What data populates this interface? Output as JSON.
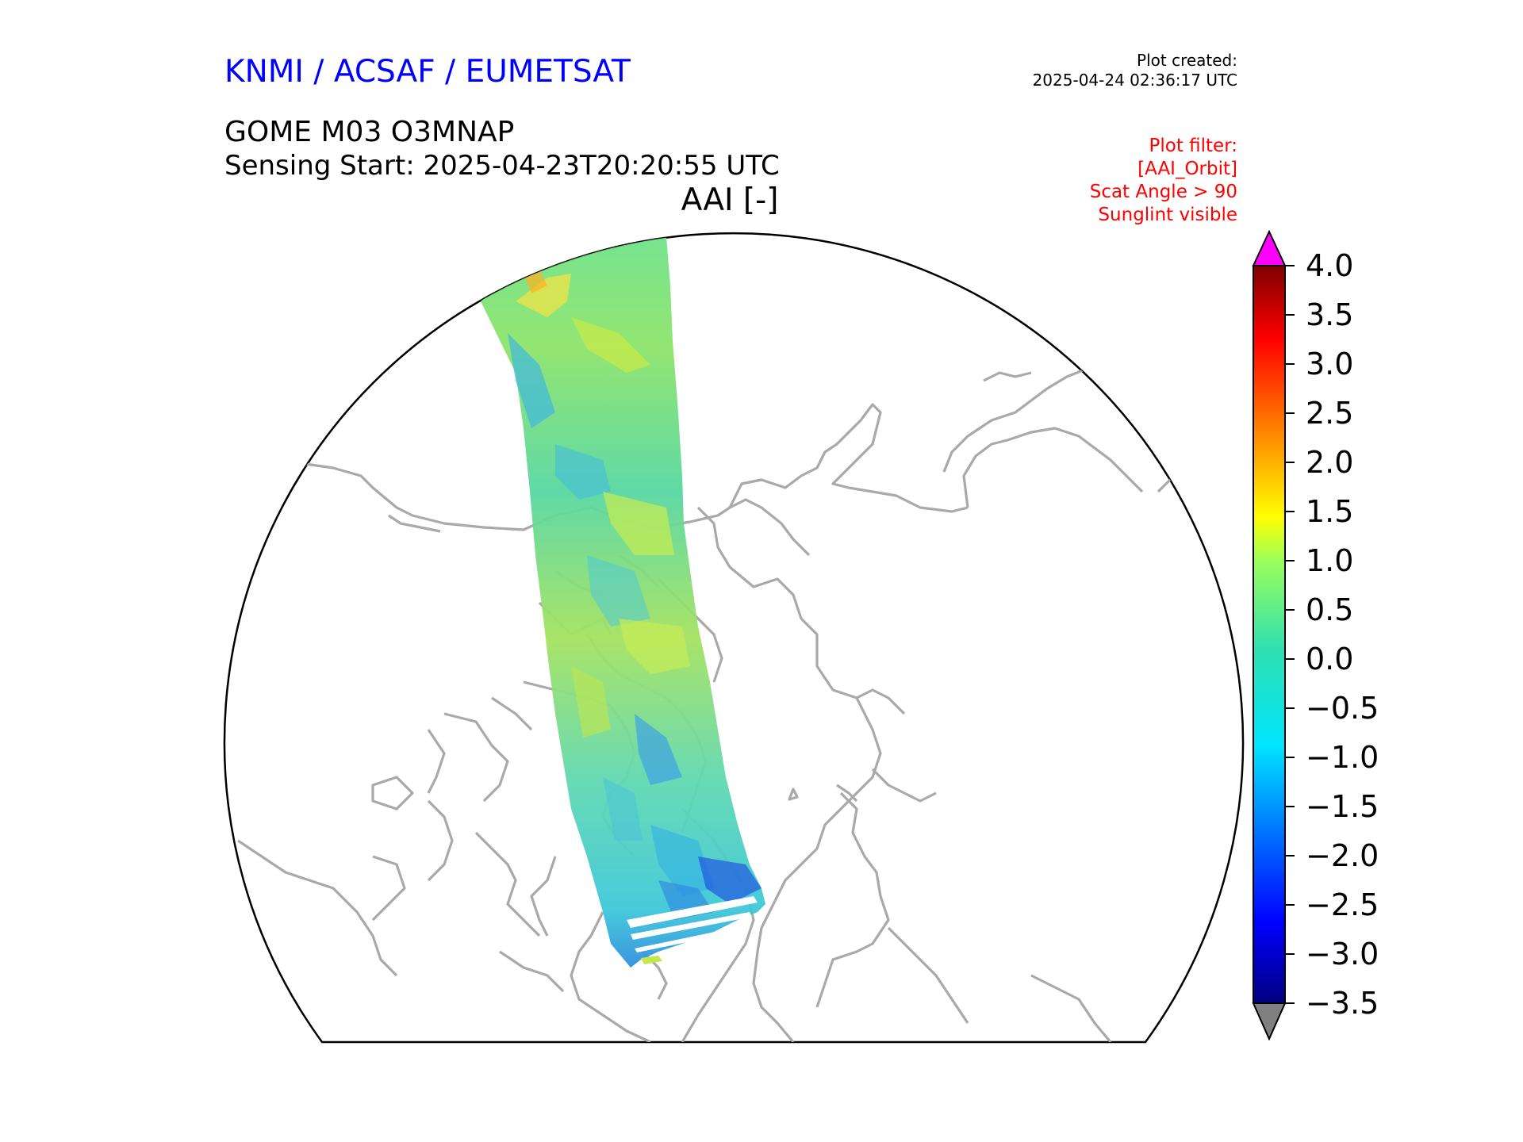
{
  "header": {
    "organisations": "KNMI / ACSAF / EUMETSAT",
    "product": "GOME M03 O3MNAP",
    "sensing_start": "Sensing Start: 2025-04-23T20:20:55 UTC",
    "created_label": "Plot created:",
    "created_value": "2025-04-24 02:36:17 UTC",
    "filter_lines": [
      "Plot filter:",
      "[AAI_Orbit]",
      "Scat Angle > 90",
      "Sunglint visible"
    ]
  },
  "map": {
    "title": "AAI [-]",
    "projection": "north polar stereographic",
    "coastline_color": "#a9a9a9",
    "swath": "satellite orbit swath crossing Greenland and Canadian Arctic"
  },
  "colorbar": {
    "min": -3.5,
    "max": 4.0,
    "ticks": [
      "4.0",
      "3.5",
      "3.0",
      "2.5",
      "2.0",
      "1.5",
      "1.0",
      "0.5",
      "0.0",
      "−0.5",
      "−1.0",
      "−1.5",
      "−2.0",
      "−2.5",
      "−3.0",
      "−3.5"
    ],
    "over_color": "#ff00ff",
    "under_color": "#808080",
    "colormap": "jet"
  }
}
